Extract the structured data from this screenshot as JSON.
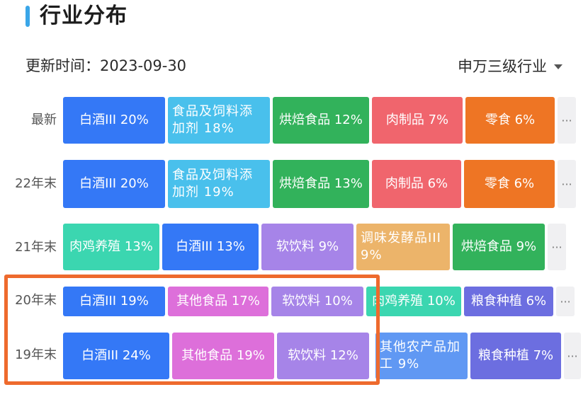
{
  "header": {
    "title": "行业分布"
  },
  "update": {
    "text": "更新时间：2023-09-30"
  },
  "industry_select": {
    "label": "申万三级行业"
  },
  "more_label": "···",
  "colors": {
    "accent": "#3aa6e8",
    "highlight": "#ee6a2d"
  },
  "rows": [
    {
      "label": "最新",
      "tiles": [
        {
          "text": "白酒III  20%",
          "color": "#3478f6"
        },
        {
          "text": "食品及饲料添加剂  18%",
          "color": "#49c0ec"
        },
        {
          "text": "烘焙食品  12%",
          "color": "#32b25b"
        },
        {
          "text": "肉制品  7%",
          "color": "#f0656d"
        },
        {
          "text": "零食  6%",
          "color": "#ee7524"
        }
      ]
    },
    {
      "label": "22年末",
      "tiles": [
        {
          "text": "白酒III  20%",
          "color": "#3478f6"
        },
        {
          "text": "食品及饲料添加剂  19%",
          "color": "#49c0ec"
        },
        {
          "text": "烘焙食品  13%",
          "color": "#32b25b"
        },
        {
          "text": "肉制品  6%",
          "color": "#f0656d"
        },
        {
          "text": "零食  6%",
          "color": "#ee7524"
        }
      ]
    },
    {
      "label": "21年末",
      "tiles": [
        {
          "text": "肉鸡养殖  13%",
          "color": "#3bd6b0"
        },
        {
          "text": "白酒III  13%",
          "color": "#3478f6"
        },
        {
          "text": "软饮料  9%",
          "color": "#a684e8"
        },
        {
          "text": "调味发酵品III  9%",
          "color": "#ecb46a"
        },
        {
          "text": "烘焙食品  9%",
          "color": "#32b25b"
        }
      ]
    },
    {
      "label": "20年末",
      "tiles": [
        {
          "text": "白酒III  19%",
          "color": "#3478f6"
        },
        {
          "text": "其他食品  17%",
          "color": "#dd6fda"
        },
        {
          "text": "软饮料  10%",
          "color": "#a684e8"
        },
        {
          "text": "肉鸡养殖  10%",
          "color": "#3bd6b0"
        },
        {
          "text": "粮食种植  6%",
          "color": "#6c6ee0"
        }
      ]
    },
    {
      "label": "19年末",
      "tiles": [
        {
          "text": "白酒III  24%",
          "color": "#3478f6"
        },
        {
          "text": "其他食品  19%",
          "color": "#dd6fda"
        },
        {
          "text": "软饮料  12%",
          "color": "#a684e8"
        },
        {
          "text": "其他农产品加工  9%",
          "color": "#6098f3"
        },
        {
          "text": "粮食种植  7%",
          "color": "#6c6ee0"
        }
      ]
    }
  ]
}
